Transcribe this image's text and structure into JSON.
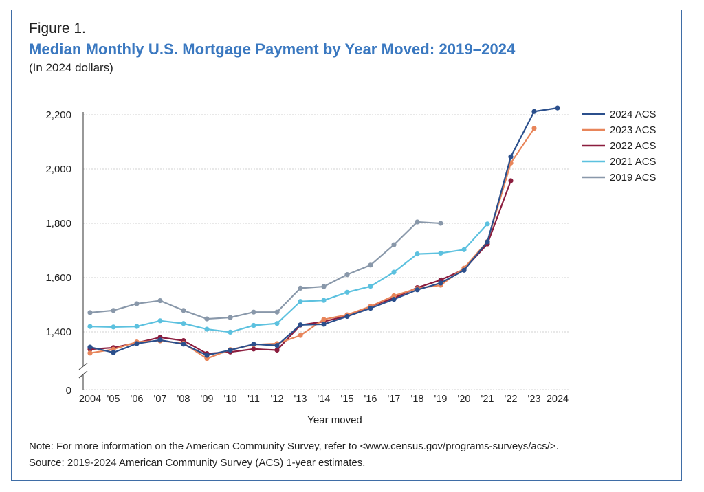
{
  "figure_label": "Figure 1.",
  "note": "Note: For more information on the American Community Survey, refer to <www.census.gov/programs-surveys/acs/>.",
  "source": "Source: 2019-2024 American Community Survey (ACS) 1-year estimates.",
  "chart_data": {
    "type": "line",
    "title": "Median Monthly U.S. Mortgage Payment by Year Moved: 2019–2024",
    "subtitle": "(In 2024 dollars)",
    "xlabel": "Year moved",
    "ylabel": "",
    "categories": [
      "2004",
      "'05",
      "'06",
      "'07",
      "'08",
      "'09",
      "'10",
      "'11",
      "'12",
      "'13",
      "'14",
      "'15",
      "'16",
      "'17",
      "'18",
      "'19",
      "'20",
      "'21",
      "'22",
      "'23",
      "2024"
    ],
    "y_ticks": [
      1400,
      1600,
      1800,
      2000,
      2200
    ],
    "y_tick_labels": [
      "1,400",
      "1,600",
      "1,800",
      "2,000",
      "2,200"
    ],
    "y_zero_label": "0",
    "ylim": [
      1300,
      2220
    ],
    "axis_break": true,
    "grid": true,
    "legend_position": "top-right",
    "series": [
      {
        "name": "2024 ACS",
        "color": "#2b4f8c",
        "values": [
          1344,
          1324,
          1357,
          1370,
          1355,
          1314,
          1333,
          1355,
          1350,
          1426,
          1428,
          1457,
          1487,
          1520,
          1555,
          1580,
          1627,
          1732,
          2045,
          2212,
          2225
        ]
      },
      {
        "name": "2023 ACS",
        "color": "#e8855a",
        "values": [
          1322,
          1336,
          1363,
          1367,
          1358,
          1302,
          1335,
          1353,
          1357,
          1387,
          1446,
          1463,
          1494,
          1533,
          1560,
          1572,
          1635,
          1733,
          2022,
          2150,
          null
        ]
      },
      {
        "name": "2022 ACS",
        "color": "#8b1d3e",
        "values": [
          1336,
          1342,
          1360,
          1380,
          1368,
          1320,
          1326,
          1337,
          1333,
          1425,
          1438,
          1459,
          1494,
          1525,
          1563,
          1591,
          1630,
          1724,
          1957,
          null,
          null
        ]
      },
      {
        "name": "2021 ACS",
        "color": "#5cc1df",
        "values": [
          1420,
          1418,
          1420,
          1441,
          1431,
          1410,
          1399,
          1424,
          1431,
          1512,
          1516,
          1546,
          1568,
          1620,
          1687,
          1690,
          1703,
          1798,
          null,
          null,
          null
        ]
      },
      {
        "name": "2019 ACS",
        "color": "#8998aa",
        "values": [
          1471,
          1479,
          1504,
          1515,
          1479,
          1448,
          1453,
          1473,
          1473,
          1561,
          1567,
          1611,
          1646,
          1721,
          1805,
          1800,
          null,
          null,
          null,
          null,
          null
        ]
      }
    ]
  }
}
